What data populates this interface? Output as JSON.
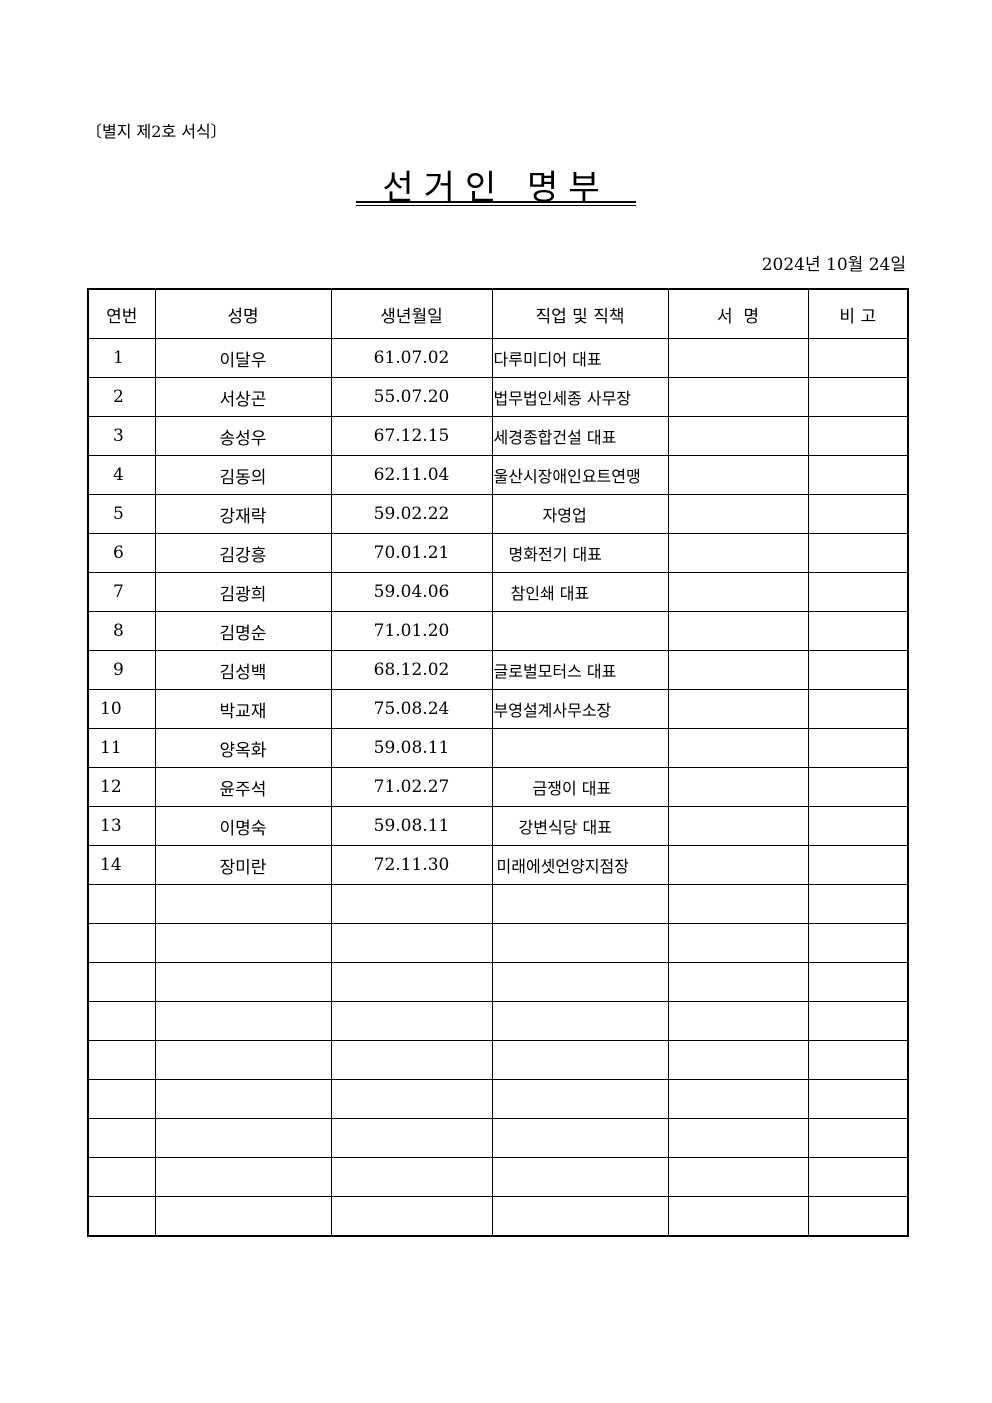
{
  "form_label": "〔별지 제2호 서식〕",
  "title": "선거인 명부",
  "date": "2024년 10월 24일",
  "table": {
    "headers": [
      "연번",
      "성명",
      "생년월일",
      "직업 및 직책",
      "서  명",
      "비 고"
    ],
    "rows": [
      {
        "no": "1",
        "name": "이달우",
        "birth": "61.07.02",
        "job": "다루미디어 대표"
      },
      {
        "no": "2",
        "name": "서상곤",
        "birth": "55.07.20",
        "job": "법무법인세종 사무장"
      },
      {
        "no": "3",
        "name": "송성우",
        "birth": "67.12.15",
        "job": "세경종합건설 대표"
      },
      {
        "no": "4",
        "name": "김동의",
        "birth": "62.11.04",
        "job": "울산시장애인요트연맹"
      },
      {
        "no": "5",
        "name": "강재락",
        "birth": "59.02.22",
        "job": "자영업"
      },
      {
        "no": "6",
        "name": "김강흥",
        "birth": "70.01.21",
        "job": "명화전기 대표"
      },
      {
        "no": "7",
        "name": "김광희",
        "birth": "59.04.06",
        "job": "참인쇄 대표"
      },
      {
        "no": "8",
        "name": "김명순",
        "birth": "71.01.20",
        "job": ""
      },
      {
        "no": "9",
        "name": "김성백",
        "birth": "68.12.02",
        "job": "글로벌모터스 대표"
      },
      {
        "no": "10",
        "name": "박교재",
        "birth": "75.08.24",
        "job": "부영설계사무소장"
      },
      {
        "no": "11",
        "name": "양옥화",
        "birth": "59.08.11",
        "job": ""
      },
      {
        "no": "12",
        "name": "윤주석",
        "birth": "71.02.27",
        "job": "금쟁이 대표"
      },
      {
        "no": "13",
        "name": "이명숙",
        "birth": "59.08.11",
        "job": "강변식당 대표"
      },
      {
        "no": "14",
        "name": "장미란",
        "birth": "72.11.30",
        "job": "미래에셋언양지점장"
      }
    ]
  }
}
